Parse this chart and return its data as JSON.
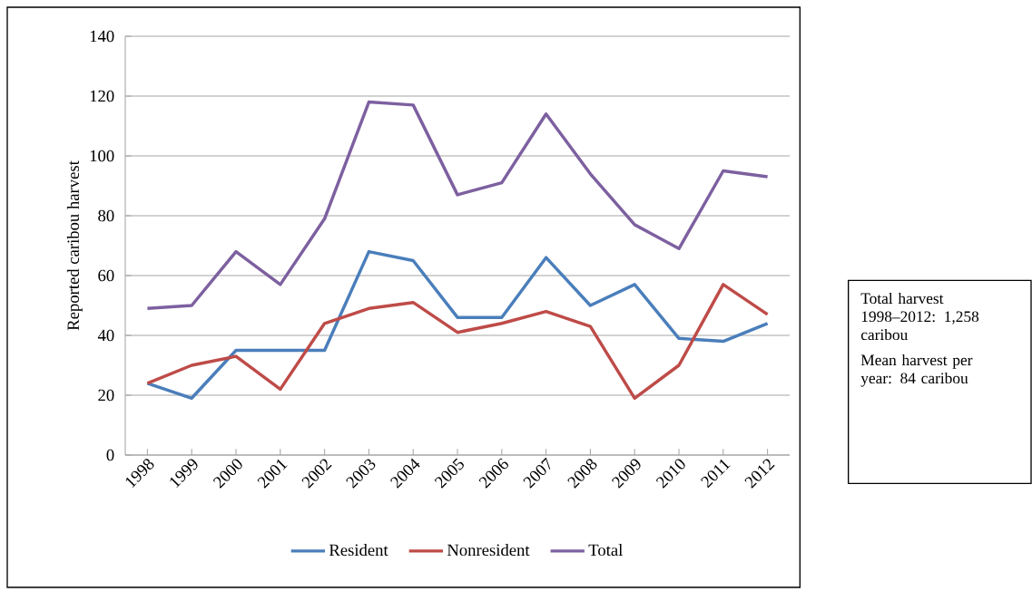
{
  "chart_data": {
    "type": "line",
    "ylabel": "Reported caribou harvest",
    "categories": [
      "1998",
      "1999",
      "2000",
      "2001",
      "2002",
      "2003",
      "2004",
      "2005",
      "2006",
      "2007",
      "2008",
      "2009",
      "2010",
      "2011",
      "2012"
    ],
    "series": [
      {
        "name": "Resident",
        "color": "#4a7ebb",
        "values": [
          24,
          19,
          35,
          35,
          35,
          68,
          65,
          46,
          46,
          66,
          50,
          57,
          39,
          38,
          44
        ]
      },
      {
        "name": "Nonresident",
        "color": "#be4b48",
        "values": [
          24,
          30,
          33,
          22,
          44,
          49,
          51,
          41,
          44,
          48,
          43,
          19,
          30,
          57,
          47
        ]
      },
      {
        "name": "Total",
        "color": "#7d60a0",
        "values": [
          49,
          50,
          68,
          57,
          79,
          118,
          117,
          87,
          91,
          114,
          94,
          77,
          69,
          95,
          93
        ]
      }
    ],
    "ylim": [
      0,
      140
    ],
    "yticks": [
      0,
      20,
      40,
      60,
      80,
      100,
      120,
      140
    ],
    "grid": "y",
    "legend": "bottom",
    "marker": "none",
    "line_style": "solid",
    "annotations": [
      "Total harvest 1998–2012: 1,258 caribou",
      "Mean harvest per year: 84 caribou"
    ]
  }
}
